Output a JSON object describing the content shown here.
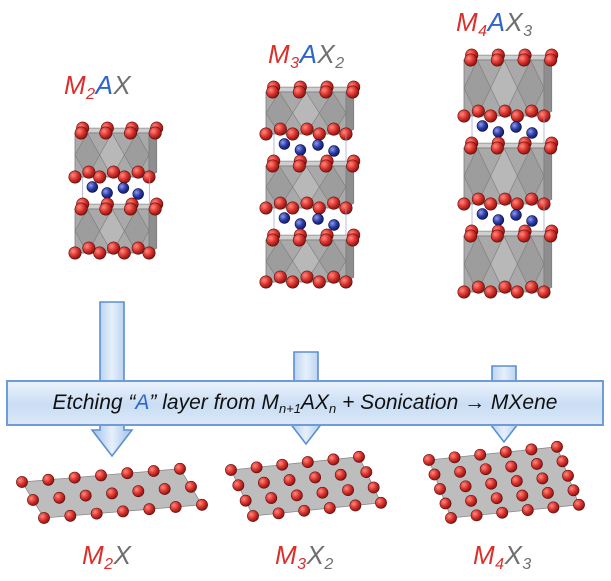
{
  "colors": {
    "metal_atom": "#d9302b",
    "a_atom": "#2b3aa6",
    "octahedron": "#a9a9a9",
    "arrow_fill": "#b9d2f0",
    "arrow_stroke": "#5b8fd1",
    "banner_border": "#6f9cd6"
  },
  "top_labels": [
    {
      "m": "M",
      "m_sub": "2",
      "a": "A",
      "x": "X",
      "x_sub": ""
    },
    {
      "m": "M",
      "m_sub": "3",
      "a": "A",
      "x": "X",
      "x_sub": "2"
    },
    {
      "m": "M",
      "m_sub": "4",
      "a": "A",
      "x": "X",
      "x_sub": "3"
    }
  ],
  "bottom_labels": [
    {
      "m": "M",
      "m_sub": "2",
      "x": "X",
      "x_sub": ""
    },
    {
      "m": "M",
      "m_sub": "3",
      "x": "X",
      "x_sub": "2"
    },
    {
      "m": "M",
      "m_sub": "4",
      "x": "X",
      "x_sub": "3"
    }
  ],
  "banner": {
    "part1": "Etching “",
    "a_letter": "A",
    "part2": "” layer from M",
    "sub1": "n+1",
    "part3": "AX",
    "sub2": "n",
    "part4": " + Sonication → MXene"
  }
}
